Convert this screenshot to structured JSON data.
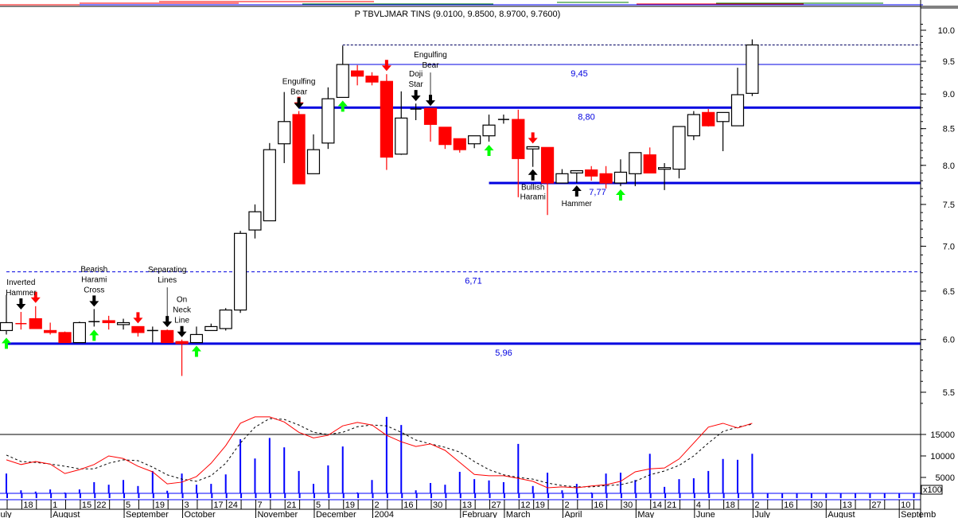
{
  "header": {
    "title": "P TBVLJMAR TINS (9.0100, 9.8500, 8.9700, 9.7600)"
  },
  "colors": {
    "up_candle": "#ffffff",
    "down_candle": "#ff0000",
    "level_line": "#0000e0",
    "bull_arrow": "#00ff00",
    "bear_arrow": "#ff0000",
    "signal_arrow": "#000000",
    "volume": "#0000ff",
    "osc_fast": "#ff0000",
    "osc_slow": "#000000"
  },
  "chart_data": {
    "type": "candlestick",
    "price_axis": {
      "scale": "log",
      "range": [
        5.3,
        10.2
      ],
      "ticks": [
        "10.0",
        "9.5",
        "9.0",
        "8.5",
        "8.0",
        "7.5",
        "7.0",
        "6.5",
        "6.0",
        "5.5"
      ]
    },
    "volume_axis": {
      "unit_label": "x100",
      "ticks": [
        "15000",
        "10000",
        "5000"
      ]
    },
    "ohlc_fields": [
      "open",
      "high",
      "low",
      "close"
    ],
    "candles": [
      [
        6.09,
        6.46,
        6.05,
        6.17
      ],
      [
        6.16,
        6.28,
        6.1,
        6.15
      ],
      [
        6.21,
        6.34,
        6.11,
        6.11
      ],
      [
        6.09,
        6.17,
        6.05,
        6.07
      ],
      [
        6.07,
        6.08,
        5.97,
        5.97
      ],
      [
        5.97,
        6.18,
        5.97,
        6.17
      ],
      [
        6.18,
        6.31,
        6.13,
        6.18
      ],
      [
        6.19,
        6.24,
        6.1,
        6.17
      ],
      [
        6.15,
        6.21,
        6.1,
        6.17
      ],
      [
        6.13,
        6.13,
        6.03,
        6.07
      ],
      [
        6.09,
        6.13,
        5.97,
        6.09
      ],
      [
        6.09,
        6.1,
        5.97,
        5.97
      ],
      [
        5.98,
        6.0,
        5.65,
        5.96
      ],
      [
        5.97,
        6.13,
        5.97,
        6.05
      ],
      [
        6.09,
        6.16,
        6.09,
        6.13
      ],
      [
        6.11,
        6.32,
        6.09,
        6.3
      ],
      [
        6.3,
        7.18,
        6.27,
        7.15
      ],
      [
        7.19,
        7.5,
        7.09,
        7.41
      ],
      [
        7.3,
        8.3,
        7.3,
        8.21
      ],
      [
        8.29,
        9.03,
        8.03,
        8.6
      ],
      [
        8.7,
        8.75,
        7.76,
        7.76
      ],
      [
        7.89,
        8.42,
        7.89,
        8.21
      ],
      [
        8.3,
        9.1,
        8.22,
        8.93
      ],
      [
        8.95,
        9.75,
        8.95,
        9.45
      ],
      [
        9.35,
        9.44,
        9.13,
        9.27
      ],
      [
        9.27,
        9.33,
        9.13,
        9.18
      ],
      [
        9.19,
        9.3,
        7.94,
        8.11
      ],
      [
        8.15,
        9.04,
        8.14,
        8.65
      ],
      [
        8.78,
        8.86,
        8.62,
        8.78
      ],
      [
        8.79,
        8.79,
        8.32,
        8.56
      ],
      [
        8.52,
        8.52,
        8.22,
        8.28
      ],
      [
        8.36,
        8.36,
        8.17,
        8.21
      ],
      [
        8.29,
        8.4,
        8.23,
        8.4
      ],
      [
        8.4,
        8.7,
        8.32,
        8.55
      ],
      [
        8.63,
        8.7,
        8.57,
        8.63
      ],
      [
        8.63,
        8.77,
        7.59,
        8.09
      ],
      [
        8.22,
        8.25,
        7.98,
        8.25
      ],
      [
        8.24,
        8.24,
        7.37,
        7.77
      ],
      [
        7.77,
        7.95,
        7.77,
        7.89
      ],
      [
        7.9,
        7.93,
        7.77,
        7.93
      ],
      [
        7.94,
        7.99,
        7.8,
        7.86
      ],
      [
        7.89,
        7.99,
        7.7,
        7.77
      ],
      [
        7.77,
        8.08,
        7.73,
        7.91
      ],
      [
        7.89,
        8.17,
        7.73,
        8.17
      ],
      [
        8.14,
        8.24,
        7.9,
        7.9
      ],
      [
        7.95,
        8.03,
        7.68,
        7.97
      ],
      [
        7.95,
        8.53,
        7.83,
        8.53
      ],
      [
        8.4,
        8.75,
        8.34,
        8.7
      ],
      [
        8.73,
        8.78,
        8.53,
        8.54
      ],
      [
        8.6,
        8.73,
        8.19,
        8.73
      ],
      [
        8.54,
        9.4,
        8.54,
        8.99
      ],
      [
        9.01,
        9.85,
        8.97,
        9.76
      ]
    ],
    "volume": [
      5900,
      2000,
      1700,
      2200,
      1100,
      2200,
      3900,
      3300,
      4400,
      3000,
      6500,
      1900,
      5900,
      3300,
      3500,
      5700,
      13900,
      9400,
      14200,
      12000,
      6500,
      3500,
      7800,
      12200,
      1500,
      4400,
      19100,
      17200,
      2000,
      3700,
      3300,
      6300,
      4600,
      4300,
      3900,
      12800,
      3000,
      6100,
      2000,
      3500,
      1000,
      5900,
      6100,
      4400,
      10500,
      2800,
      4600,
      4800,
      6500,
      9300,
      9100,
      10500
    ],
    "oscillator_fast": [
      9100,
      8000,
      8700,
      8100,
      5900,
      6800,
      8000,
      10000,
      9400,
      7600,
      6300,
      3500,
      3900,
      5200,
      8300,
      12400,
      17600,
      19100,
      19100,
      17900,
      15500,
      14200,
      14800,
      17000,
      17800,
      17200,
      14800,
      13300,
      12200,
      12800,
      11300,
      8500,
      5700,
      5400,
      5400,
      4800,
      4100,
      2600,
      2800,
      2600,
      3000,
      3300,
      4100,
      6300,
      7000,
      7200,
      9300,
      13000,
      16700,
      17600,
      16500,
      17600
    ],
    "oscillator_slow": [
      10200,
      8700,
      8500,
      8100,
      7600,
      7000,
      7000,
      8300,
      9100,
      8900,
      7400,
      5600,
      4600,
      4100,
      5400,
      8300,
      13000,
      16700,
      18700,
      18500,
      17200,
      15500,
      15000,
      15500,
      16800,
      17200,
      17000,
      15500,
      13700,
      12800,
      12000,
      10900,
      8700,
      6800,
      5600,
      5000,
      4600,
      3700,
      3100,
      2800,
      2800,
      3100,
      3300,
      4100,
      5600,
      6500,
      7800,
      10000,
      13000,
      15700,
      16700,
      17400
    ],
    "volume_reference_line": 15000,
    "levels": [
      {
        "value": 9.76,
        "label": "",
        "style": "dotted",
        "from_candle": 24
      },
      {
        "value": 9.45,
        "label": "9,45",
        "style": "thin",
        "from_candle": 24
      },
      {
        "value": 8.8,
        "label": "8,80",
        "style": "thick",
        "from_candle": 21
      },
      {
        "value": 7.77,
        "label": "7,77",
        "style": "thick",
        "from_candle": 34
      },
      {
        "value": 6.71,
        "label": "6,71",
        "style": "dashed",
        "from_candle": 1
      },
      {
        "value": 5.96,
        "label": "5,96",
        "style": "thick",
        "from_candle": 1
      }
    ],
    "patterns": [
      {
        "candle": 2,
        "lines": [
          "Inverted",
          "Hammer"
        ],
        "arrow": "down"
      },
      {
        "candle": 7,
        "lines": [
          "Bearish",
          "Harami",
          "Cross"
        ],
        "arrow": "down"
      },
      {
        "candle": 12,
        "lines": [
          "Separating",
          "Lines"
        ],
        "arrow": "down"
      },
      {
        "candle": 13,
        "lines": [
          "On",
          "Neck",
          "Line"
        ],
        "arrow": "down"
      },
      {
        "candle": 21,
        "lines": [
          "Engulfing",
          "Bear"
        ],
        "arrow": "down"
      },
      {
        "candle": 29,
        "lines": [
          "Doji",
          "Star"
        ],
        "arrow": "down"
      },
      {
        "candle": 30,
        "lines": [
          "Engulfing",
          "Bear"
        ],
        "arrow": "down"
      },
      {
        "candle": 37,
        "lines": [
          "Bullish",
          "Harami"
        ],
        "arrow": "up"
      },
      {
        "candle": 40,
        "lines": [
          "Hammer"
        ],
        "arrow": "up"
      }
    ],
    "buy_signals": [
      1,
      7,
      14,
      24,
      34,
      43
    ],
    "sell_signals": [
      3,
      10,
      21,
      27,
      37
    ],
    "x_axis": {
      "day_labels": [
        [
          1,
          "18"
        ],
        [
          3,
          "1"
        ],
        [
          5,
          "15"
        ],
        [
          6,
          "22"
        ],
        [
          8,
          "5"
        ],
        [
          10,
          "19"
        ],
        [
          12,
          "3"
        ],
        [
          14,
          "17"
        ],
        [
          15,
          "24"
        ],
        [
          17,
          "7"
        ],
        [
          19,
          "21"
        ],
        [
          21,
          "5"
        ],
        [
          23,
          "19"
        ],
        [
          25,
          "2"
        ],
        [
          27,
          "16"
        ],
        [
          29,
          "30"
        ],
        [
          31,
          "13"
        ],
        [
          33,
          "27"
        ],
        [
          35,
          "12"
        ],
        [
          36,
          "19"
        ],
        [
          38,
          "2"
        ],
        [
          40,
          "16"
        ],
        [
          42,
          "30"
        ],
        [
          44,
          "14"
        ],
        [
          45,
          "21"
        ],
        [
          47,
          "4"
        ],
        [
          49,
          "18"
        ],
        [
          51,
          "2"
        ],
        [
          53,
          "16"
        ],
        [
          55,
          "30"
        ],
        [
          57,
          "13"
        ],
        [
          59,
          "27"
        ],
        [
          61,
          "10"
        ]
      ],
      "month_labels": [
        [
          0,
          "July"
        ],
        [
          3,
          "August"
        ],
        [
          8,
          "September"
        ],
        [
          12,
          "October"
        ],
        [
          17,
          "November"
        ],
        [
          21,
          "December"
        ],
        [
          25,
          "2004"
        ],
        [
          31,
          "February"
        ],
        [
          34,
          "March"
        ],
        [
          38,
          "April"
        ],
        [
          43,
          "May"
        ],
        [
          47,
          "June"
        ],
        [
          51,
          "July"
        ],
        [
          56,
          "August"
        ],
        [
          61,
          "Septemb"
        ]
      ]
    }
  }
}
